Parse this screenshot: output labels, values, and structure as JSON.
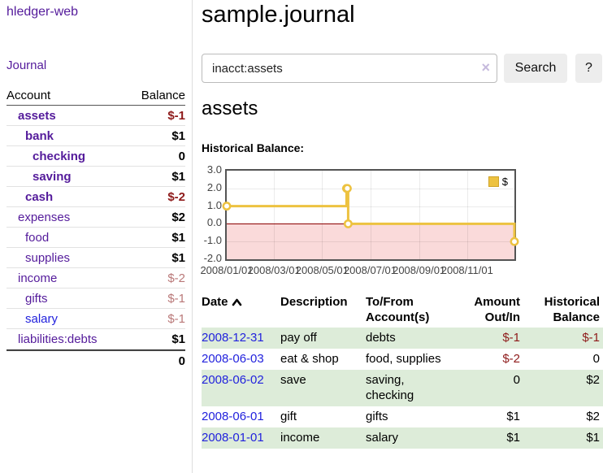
{
  "app": {
    "brand": "hledger-web"
  },
  "sidebar": {
    "journal_link": "Journal",
    "accounts_table": {
      "col_account": "Account",
      "col_balance": "Balance",
      "rows": [
        {
          "name": "assets",
          "depth": 1,
          "bold": true,
          "balance": "$-1"
        },
        {
          "name": "bank",
          "depth": 2,
          "bold": true,
          "balance": "$1"
        },
        {
          "name": "checking",
          "depth": 3,
          "bold": true,
          "balance": "0"
        },
        {
          "name": "saving",
          "depth": 3,
          "bold": true,
          "balance": "$1"
        },
        {
          "name": "cash",
          "depth": 2,
          "bold": true,
          "balance": "$-2"
        },
        {
          "name": "expenses",
          "depth": 1,
          "bold": false,
          "balance": "$2"
        },
        {
          "name": "food",
          "depth": 2,
          "bold": false,
          "balance": "$1"
        },
        {
          "name": "supplies",
          "depth": 2,
          "bold": false,
          "balance": "$1"
        },
        {
          "name": "income",
          "depth": 1,
          "bold": false,
          "balance": "$-2"
        },
        {
          "name": "gifts",
          "depth": 2,
          "bold": false,
          "balance": "$-1"
        },
        {
          "name": "salary",
          "depth": 2,
          "bold": false,
          "balance": "$-1",
          "link_style": "blue"
        },
        {
          "name": "liabilities:debts",
          "depth": 1,
          "bold": false,
          "balance": "$1"
        }
      ],
      "total": "0"
    }
  },
  "header": {
    "title": "sample.journal"
  },
  "search": {
    "value": "inacct:assets",
    "clear_icon": "×",
    "button": "Search",
    "help_button": "?"
  },
  "account_page": {
    "heading": "assets",
    "chart_label": "Historical Balance:"
  },
  "chart_data": {
    "type": "line",
    "step": true,
    "title": "Historical Balance",
    "xrange": [
      "2008/01/01",
      "2008/12/31"
    ],
    "ylim": [
      -2,
      3
    ],
    "yticks": [
      "3.0",
      "2.0",
      "1.0",
      "0.0",
      "-1.0",
      "-2.0"
    ],
    "xticks": [
      "2008/01/01",
      "2008/03/01",
      "2008/05/01",
      "2008/07/01",
      "2008/09/01",
      "2008/11/01"
    ],
    "series": [
      {
        "name": "$",
        "color": "#edc240",
        "points": [
          [
            "2008/01/01",
            1
          ],
          [
            "2008/06/01",
            2
          ],
          [
            "2008/06/02",
            2
          ],
          [
            "2008/06/03",
            0
          ],
          [
            "2008/12/31",
            -1
          ]
        ]
      }
    ],
    "legend_position": "top-right",
    "grid": true,
    "zero_line_color": "#8b0000",
    "negative_region_color": "#fadada",
    "border_color": "#545454"
  },
  "register": {
    "headers": {
      "date": "Date",
      "description": "Description",
      "accounts": "To/From Account(s)",
      "amount": "Amount Out/In",
      "balance": "Historical Balance"
    },
    "rows": [
      {
        "date": "2008-12-31",
        "description": "pay off",
        "accounts": "debts",
        "amount": "$-1",
        "balance": "$-1"
      },
      {
        "date": "2008-06-03",
        "description": "eat & shop",
        "accounts": "food, supplies",
        "amount": "$-2",
        "balance": "0"
      },
      {
        "date": "2008-06-02",
        "description": "save",
        "accounts": "saving, checking",
        "amount": "0",
        "balance": "$2"
      },
      {
        "date": "2008-06-01",
        "description": "gift",
        "accounts": "gifts",
        "amount": "$1",
        "balance": "$2"
      },
      {
        "date": "2008-01-01",
        "description": "income",
        "accounts": "salary",
        "amount": "$1",
        "balance": "$1"
      }
    ]
  }
}
